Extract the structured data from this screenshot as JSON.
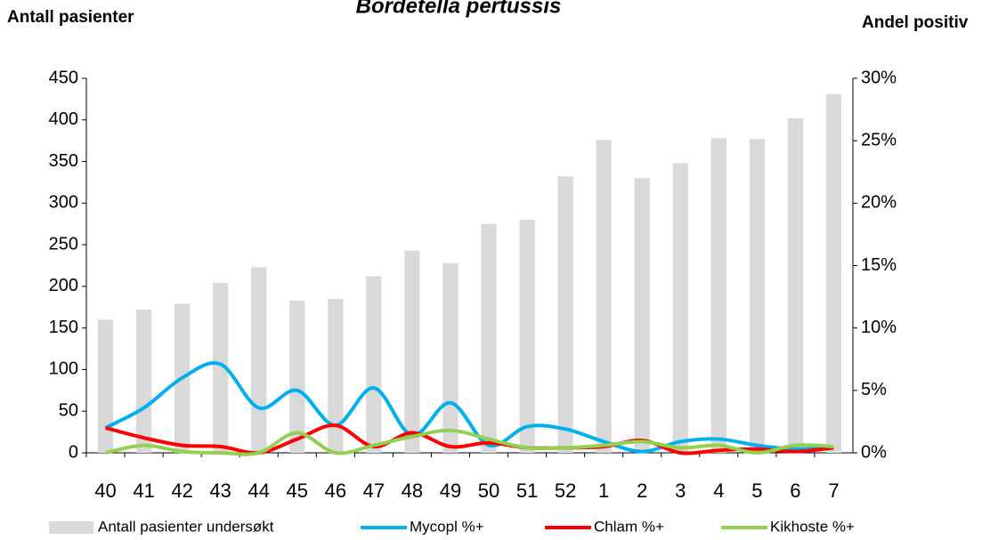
{
  "chart_data": {
    "type": "bar_line",
    "title": "Bordetella pertussis",
    "y_label": "Antall pasienter",
    "y2_label": "Andel positiv",
    "categories": [
      "40",
      "41",
      "42",
      "43",
      "44",
      "45",
      "46",
      "47",
      "48",
      "49",
      "50",
      "51",
      "52",
      "1",
      "2",
      "3",
      "4",
      "5",
      "6",
      "7"
    ],
    "ylim": [
      0,
      450
    ],
    "yticks": [
      0,
      50,
      100,
      150,
      200,
      250,
      300,
      350,
      400,
      450
    ],
    "y2lim": [
      0,
      30
    ],
    "y2ticks": [
      {
        "value": 0,
        "label": "0%"
      },
      {
        "value": 5,
        "label": "5%"
      },
      {
        "value": 10,
        "label": "10%"
      },
      {
        "value": 15,
        "label": "15%"
      },
      {
        "value": 20,
        "label": "20%"
      },
      {
        "value": 25,
        "label": "25%"
      },
      {
        "value": 30,
        "label": "30%"
      }
    ],
    "series": [
      {
        "name": "Antall pasienter undersøkt",
        "type": "bar",
        "color": "#d9d9d9",
        "values": [
          160,
          172,
          179,
          204,
          223,
          183,
          185,
          212,
          243,
          228,
          275,
          280,
          332,
          376,
          330,
          348,
          378,
          377,
          402,
          431
        ]
      },
      {
        "name": "Mycopl %+",
        "type": "line",
        "axis": "y2",
        "color": "#00b0f0",
        "values": [
          2.0,
          3.6,
          6.0,
          7.1,
          3.6,
          5.0,
          2.2,
          5.2,
          1.4,
          4.0,
          0.6,
          2.1,
          1.9,
          0.9,
          0.1,
          0.9,
          1.1,
          0.6,
          0.3,
          0.5
        ]
      },
      {
        "name": "Chlam %+",
        "type": "line",
        "axis": "y2",
        "color": "#ff0000",
        "values": [
          2.0,
          1.2,
          0.6,
          0.5,
          0,
          1.1,
          2.2,
          0.5,
          1.6,
          0.5,
          0.8,
          0.4,
          0.4,
          0.5,
          1.0,
          0,
          0.2,
          0.3,
          0.1,
          0.4
        ]
      },
      {
        "name": "Kikhoste %+",
        "type": "line",
        "axis": "y2",
        "color": "#92d050",
        "values": [
          0,
          0.6,
          0.1,
          0,
          0,
          1.6,
          0,
          0.6,
          1.3,
          1.8,
          1.1,
          0.4,
          0.4,
          0.6,
          0.9,
          0.4,
          0.6,
          0,
          0.6,
          0.5
        ]
      }
    ]
  }
}
